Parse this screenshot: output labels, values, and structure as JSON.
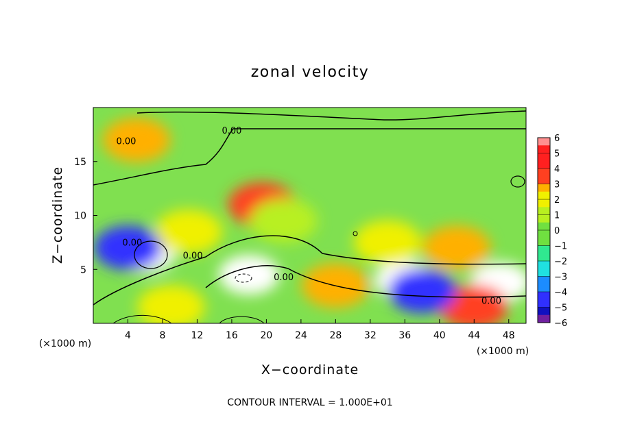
{
  "chart_data": {
    "type": "heatmap",
    "title": "zonal velocity",
    "xlabel": "X−coordinate",
    "ylabel": "Z−coordinate",
    "x_unit_left": "(×1000 m)",
    "x_unit_right": "(×1000 m)",
    "xlim": [
      0,
      50
    ],
    "ylim": [
      0,
      20
    ],
    "x_ticks": [
      4,
      8,
      12,
      16,
      20,
      24,
      28,
      32,
      36,
      40,
      44,
      48
    ],
    "y_ticks": [
      5,
      10,
      15
    ],
    "colorbar": {
      "min": -6,
      "max": 6,
      "tick_labels": [
        "6",
        "5",
        "4",
        "3",
        "2",
        "1",
        "0",
        "−1",
        "−2",
        "−3",
        "−4",
        "−5",
        "−6"
      ]
    },
    "contour_labels": [
      "0.00",
      "0.00",
      "0.00",
      "0.00",
      "0.00",
      "0.00"
    ],
    "footer": "CONTOUR INTERVAL = 1.000E+01",
    "features": [
      {
        "x": 6,
        "z": 6.5,
        "value": -6.5
      },
      {
        "x": 18,
        "z": 4.5,
        "value": -6.5
      },
      {
        "x": 36,
        "z": 4.0,
        "value": -6.2
      },
      {
        "x": 47,
        "z": 3.8,
        "value": -6.5
      },
      {
        "x": 19.5,
        "z": 11.0,
        "value": 3.8
      },
      {
        "x": 11,
        "z": 8.5,
        "value": 2.5
      },
      {
        "x": 28,
        "z": 3.5,
        "value": 3.0
      },
      {
        "x": 42,
        "z": 7.0,
        "value": 3.0
      },
      {
        "x": 44,
        "z": 1.5,
        "value": 3.5
      },
      {
        "x": 34,
        "z": 7.5,
        "value": 2.5
      },
      {
        "x": 5,
        "z": 17.0,
        "value": 3.0
      },
      {
        "x": 4,
        "z": 7.0,
        "value": -4.5
      },
      {
        "x": 9,
        "z": 1.5,
        "value": 2.0
      },
      {
        "x": 22,
        "z": 9.5,
        "value": 1.0
      },
      {
        "x": 38,
        "z": 3.0,
        "value": -4.0
      }
    ]
  }
}
